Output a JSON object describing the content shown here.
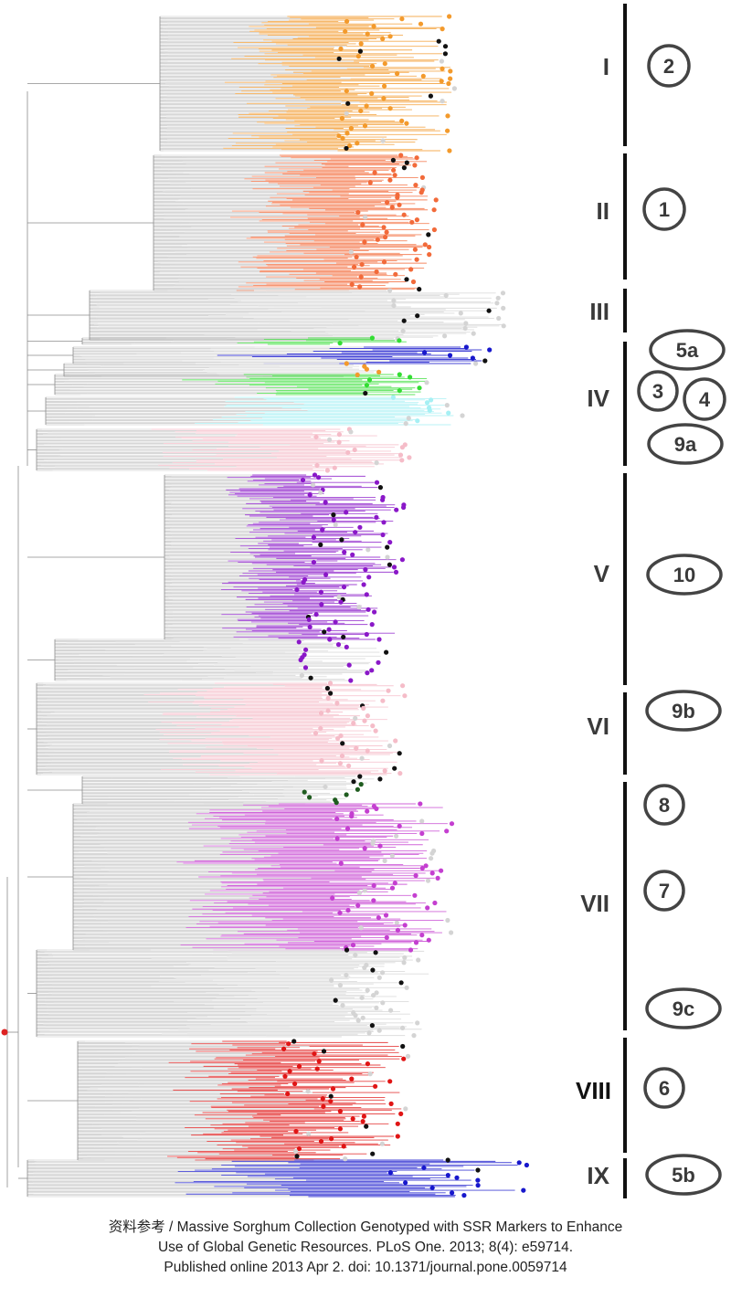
{
  "clusters": [
    {
      "roman": "I",
      "subgroups": [
        "2"
      ]
    },
    {
      "roman": "II",
      "subgroups": [
        "1"
      ]
    },
    {
      "roman": "III",
      "subgroups": []
    },
    {
      "roman": "IV",
      "subgroups": [
        "5a",
        "3",
        "4",
        "9a"
      ]
    },
    {
      "roman": "V",
      "subgroups": [
        "10"
      ]
    },
    {
      "roman": "VI",
      "subgroups": [
        "9b"
      ]
    },
    {
      "roman": "VII",
      "subgroups": [
        "8",
        "7",
        "9c"
      ]
    },
    {
      "roman": "VIII",
      "subgroups": [
        "6"
      ]
    },
    {
      "roman": "IX",
      "subgroups": [
        "5b"
      ]
    }
  ],
  "colors": {
    "branch": "#8c8c8c",
    "tip_black": "#111111",
    "orange": "#f39a2c",
    "coral": "#f26a3a",
    "light_gray": "#d4d4d4",
    "green": "#33dd33",
    "blue": "#1818cc",
    "cyan": "#a6f0f4",
    "pink": "#f5bcc8",
    "purple": "#8a18c8",
    "magenta": "#c43fd0",
    "dark_green": "#1f5c1f",
    "red": "#e01515",
    "root_marker": "#dd2222"
  },
  "caption": {
    "line1": "资料参考 / Massive Sorghum Collection Genotyped with SSR Markers to Enhance",
    "line2": "Use of Global Genetic Resources. PLoS One. 2013; 8(4): e59714.",
    "line3": "Published online 2013 Apr 2. doi: 10.1371/journal.pone.0059714"
  }
}
